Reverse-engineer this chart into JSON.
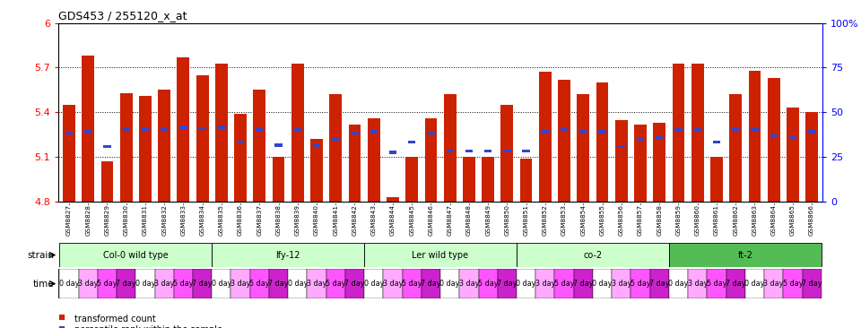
{
  "title": "GDS453 / 255120_x_at",
  "samples": [
    "GSM8827",
    "GSM8828",
    "GSM8829",
    "GSM8830",
    "GSM8831",
    "GSM8832",
    "GSM8833",
    "GSM8834",
    "GSM8835",
    "GSM8836",
    "GSM8837",
    "GSM8838",
    "GSM8839",
    "GSM8840",
    "GSM8841",
    "GSM8842",
    "GSM8843",
    "GSM8844",
    "GSM8845",
    "GSM8846",
    "GSM8847",
    "GSM8848",
    "GSM8849",
    "GSM8850",
    "GSM8851",
    "GSM8852",
    "GSM8853",
    "GSM8854",
    "GSM8855",
    "GSM8856",
    "GSM8857",
    "GSM8858",
    "GSM8859",
    "GSM8860",
    "GSM8861",
    "GSM8862",
    "GSM8863",
    "GSM8864",
    "GSM8865",
    "GSM8866"
  ],
  "bar_values": [
    5.45,
    5.78,
    5.07,
    5.53,
    5.51,
    5.55,
    5.77,
    5.65,
    5.73,
    5.39,
    5.55,
    5.1,
    5.73,
    5.22,
    5.52,
    5.32,
    5.36,
    4.83,
    5.1,
    5.36,
    5.52,
    5.1,
    5.1,
    5.45,
    5.09,
    5.67,
    5.62,
    5.52,
    5.6,
    5.35,
    5.32,
    5.33,
    5.73,
    5.73,
    5.1,
    5.52,
    5.68,
    5.63,
    5.43,
    5.4
  ],
  "blue_dot_values": [
    5.26,
    5.27,
    5.17,
    5.28,
    5.28,
    5.28,
    5.3,
    5.29,
    5.3,
    5.2,
    5.28,
    5.18,
    5.28,
    5.18,
    5.22,
    5.26,
    5.27,
    5.13,
    5.2,
    5.26,
    5.14,
    5.14,
    5.14,
    5.14,
    5.14,
    5.27,
    5.28,
    5.27,
    5.27,
    5.17,
    5.22,
    5.23,
    5.28,
    5.28,
    5.2,
    5.28,
    5.28,
    5.24,
    5.23,
    5.27
  ],
  "ylim": [
    4.8,
    6.0
  ],
  "yticks": [
    4.8,
    5.1,
    5.4,
    5.7,
    6.0
  ],
  "ytick_labels": [
    "4.8",
    "5.1",
    "5.4",
    "5.7",
    "6"
  ],
  "right_yticks": [
    0,
    25,
    50,
    75,
    100
  ],
  "right_ytick_labels": [
    "0",
    "25",
    "50",
    "75",
    "100%"
  ],
  "bar_color": "#cc2200",
  "dot_color": "#3344cc",
  "grid_dotted_vals": [
    5.1,
    5.4,
    5.7
  ],
  "strain_groups": [
    {
      "label": "Col-0 wild type",
      "start": 0,
      "end": 8,
      "color": "#ccffcc"
    },
    {
      "label": "lfy-12",
      "start": 8,
      "end": 16,
      "color": "#ccffcc"
    },
    {
      "label": "Ler wild type",
      "start": 16,
      "end": 24,
      "color": "#ccffcc"
    },
    {
      "label": "co-2",
      "start": 24,
      "end": 32,
      "color": "#ccffcc"
    },
    {
      "label": "ft-2",
      "start": 32,
      "end": 40,
      "color": "#55bb55"
    }
  ],
  "time_labels": [
    "0 day",
    "3 day",
    "5 day",
    "7 day"
  ],
  "time_colors": [
    "#ffffff",
    "#ffaaff",
    "#ff55ff",
    "#cc22cc"
  ],
  "time_bg": "#ccffcc"
}
